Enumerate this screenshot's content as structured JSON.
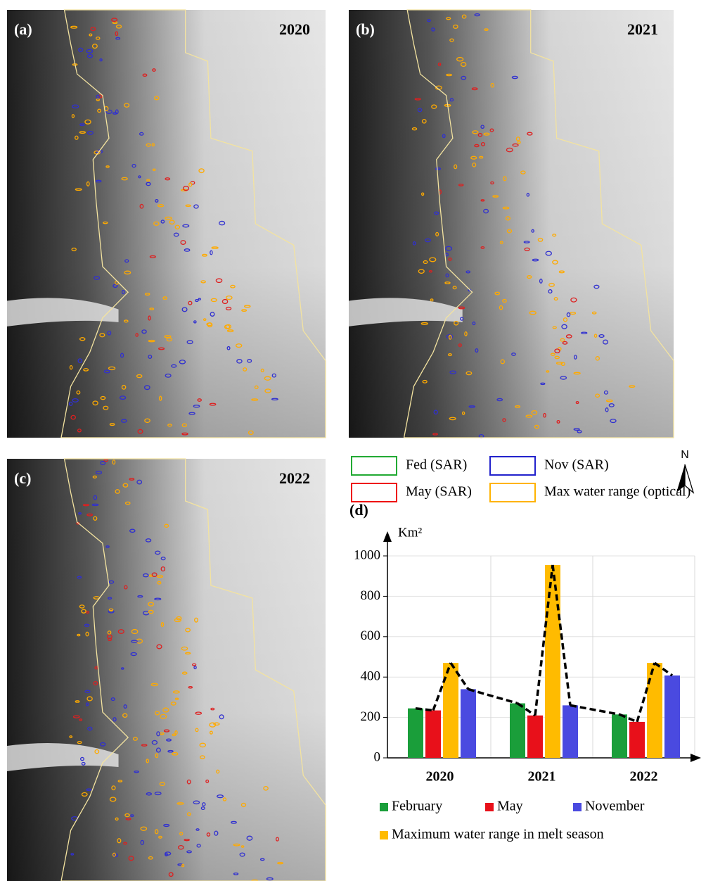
{
  "panels": [
    {
      "label": "(a)",
      "year": "2020"
    },
    {
      "label": "(b)",
      "year": "2021"
    },
    {
      "label": "(c)",
      "year": "2022"
    }
  ],
  "map_legend": [
    {
      "label": "Fed (SAR)",
      "color": "#22aa33"
    },
    {
      "label": "Nov (SAR)",
      "color": "#2222cc"
    },
    {
      "label": "May (SAR)",
      "color": "#ee1111"
    },
    {
      "label": "Max water range (optical)",
      "color": "#ffb300"
    }
  ],
  "north": "N",
  "chart_data": {
    "type": "bar",
    "panel_label": "(d)",
    "y_label": "Km²",
    "categories": [
      "2020",
      "2021",
      "2022"
    ],
    "series": [
      {
        "name": "February",
        "color": "#1a9e3a",
        "values": [
          245,
          270,
          215
        ]
      },
      {
        "name": "May",
        "color": "#e8101a",
        "values": [
          235,
          210,
          178
        ]
      },
      {
        "name": "Maximum water range in melt season",
        "color": "#ffbb00",
        "values": [
          470,
          955,
          470
        ]
      },
      {
        "name": "November",
        "color": "#4a4ae0",
        "values": [
          340,
          260,
          408
        ]
      }
    ],
    "ylim": [
      0,
      1000
    ],
    "yticks": [
      0,
      200,
      400,
      600,
      800,
      1000
    ],
    "grid": true
  }
}
